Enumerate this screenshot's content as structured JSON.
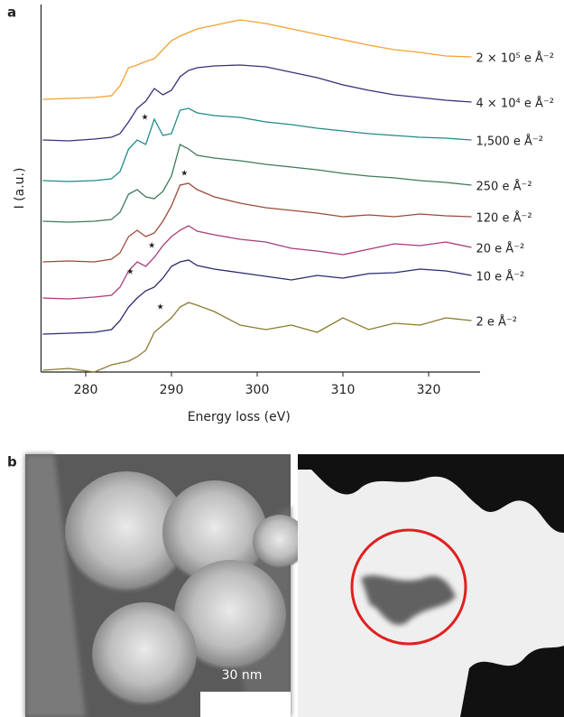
{
  "panel_labels": [
    "a",
    "b"
  ],
  "chart_data": {
    "type": "line",
    "xlabel": "Energy loss (eV)",
    "ylabel": "I (a.u.)",
    "xlim": [
      275,
      326
    ],
    "xticks": [
      280,
      290,
      300,
      310,
      320
    ],
    "ylim": [
      0,
      407
    ],
    "x": [
      275,
      278,
      281,
      283,
      284,
      285,
      286,
      287,
      288,
      289,
      290,
      291,
      292,
      293,
      295,
      298,
      301,
      304,
      307,
      310,
      313,
      316,
      319,
      322,
      325
    ],
    "series": [
      {
        "name": "2 × 10⁵ e Å⁻²",
        "color": "#f5a030",
        "values": [
          302,
          303,
          304,
          306,
          317,
          337,
          340,
          344,
          347,
          357,
          367,
          372,
          376,
          380,
          384,
          390,
          386,
          380,
          374,
          368,
          362,
          357,
          354,
          350,
          349
        ]
      },
      {
        "name": "4 × 10⁴ e Å⁻²",
        "color": "#3a2f7a",
        "values": [
          257,
          256,
          258,
          260,
          264,
          277,
          292,
          300,
          314,
          307,
          312,
          327,
          334,
          337,
          339,
          340,
          338,
          332,
          326,
          318,
          312,
          307,
          304,
          301,
          299
        ]
      },
      {
        "name": "1,500 e Å⁻²",
        "color": "#1f8a8a",
        "values": [
          212,
          211,
          212,
          214,
          222,
          247,
          257,
          252,
          280,
          262,
          264,
          290,
          292,
          287,
          284,
          282,
          277,
          274,
          270,
          267,
          264,
          262,
          260,
          259,
          257
        ]
      },
      {
        "name": "250 e Å⁻²",
        "color": "#3d7a5a",
        "values": [
          167,
          166,
          167,
          169,
          177,
          197,
          202,
          194,
          192,
          200,
          217,
          252,
          247,
          240,
          237,
          234,
          230,
          227,
          224,
          220,
          217,
          215,
          212,
          210,
          207
        ]
      },
      {
        "name": "120 e Å⁻²",
        "color": "#9b4a3a",
        "values": [
          122,
          123,
          122,
          125,
          132,
          150,
          157,
          150,
          154,
          167,
          184,
          207,
          209,
          202,
          194,
          187,
          182,
          179,
          176,
          172,
          174,
          172,
          175,
          173,
          172
        ]
      },
      {
        "name": "20 e Å⁻²",
        "color": "#a83a7a",
        "values": [
          82,
          81,
          83,
          85,
          94,
          112,
          122,
          117,
          127,
          140,
          150,
          157,
          162,
          156,
          152,
          147,
          144,
          137,
          134,
          130,
          136,
          142,
          140,
          144,
          138
        ]
      },
      {
        "name": "10 e Å⁻²",
        "color": "#2a2a70",
        "values": [
          42,
          43,
          44,
          47,
          57,
          72,
          82,
          90,
          94,
          104,
          117,
          122,
          124,
          118,
          114,
          110,
          106,
          102,
          107,
          104,
          109,
          110,
          114,
          112,
          107
        ]
      },
      {
        "name": "2 e Å⁻²",
        "color": "#8a7a30",
        "values": [
          2,
          4,
          0,
          8,
          10,
          12,
          17,
          24,
          44,
          52,
          60,
          72,
          77,
          74,
          67,
          52,
          47,
          52,
          44,
          60,
          47,
          54,
          52,
          60,
          57
        ]
      }
    ],
    "annotations": [
      {
        "text": "★",
        "x": 286.9,
        "y": 282
      },
      {
        "text": "★",
        "x": 291.5,
        "y": 220
      },
      {
        "text": "★",
        "x": 287.7,
        "y": 140
      },
      {
        "text": "★",
        "x": 285.2,
        "y": 111
      },
      {
        "text": "★",
        "x": 288.7,
        "y": 72
      }
    ]
  },
  "images": {
    "scale_bar": "30 nm"
  }
}
